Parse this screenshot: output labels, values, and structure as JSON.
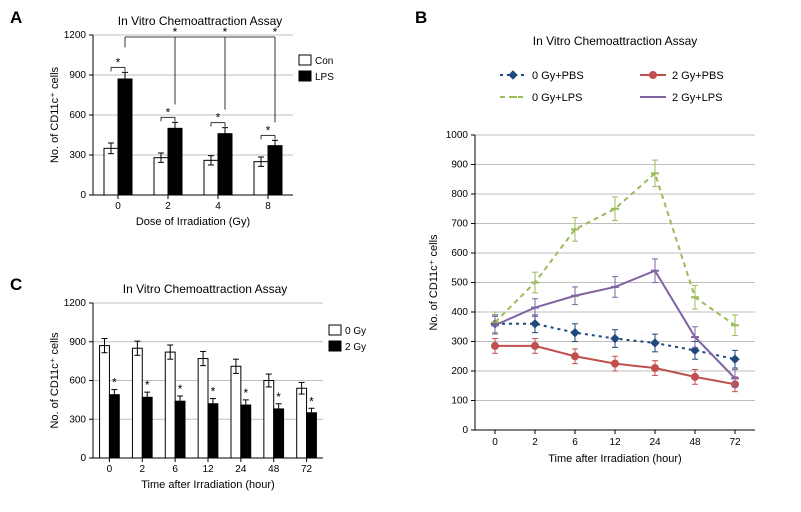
{
  "colors": {
    "background": "#ffffff",
    "axis": "#000000",
    "grid": "#bfbfbf",
    "bar_white": "#ffffff",
    "bar_black": "#000000",
    "bar_border": "#000000",
    "err": "#000000",
    "series_0gy_pbs": "#1f497d",
    "series_2gy_pbs": "#c0504d",
    "series_0gy_lps": "#9bbb59",
    "series_2gy_lps": "#8064a2"
  },
  "panelA": {
    "label": "A",
    "title": "In Vitro Chemoattraction Assay",
    "xlabel": "Dose of Irradiation (Gy)",
    "ylabel": "No. of CD11c⁺ cells",
    "categories": [
      "0",
      "2",
      "4",
      "8"
    ],
    "ylim": [
      0,
      1200
    ],
    "ytick_step": 300,
    "con": {
      "label": "Con",
      "values": [
        350,
        280,
        260,
        250
      ],
      "err": [
        40,
        35,
        35,
        35
      ]
    },
    "lps": {
      "label": "LPS",
      "values": [
        870,
        500,
        460,
        370
      ],
      "err": [
        50,
        45,
        45,
        40
      ]
    }
  },
  "panelB": {
    "label": "B",
    "title": "In Vitro Chemoattraction Assay",
    "xlabel": "Time after Irradiation (hour)",
    "ylabel": "No. of CD11c⁺ cells",
    "xcats": [
      "0",
      "2",
      "6",
      "12",
      "24",
      "48",
      "72"
    ],
    "ylim": [
      0,
      1000
    ],
    "ytick_step": 100,
    "series": [
      {
        "key": "s0p",
        "label": "0 Gy+PBS",
        "color_key": "series_0gy_pbs",
        "dash": "3,4",
        "marker": "diamond",
        "values": [
          360,
          360,
          330,
          310,
          295,
          270,
          240
        ],
        "err": [
          30,
          30,
          30,
          30,
          30,
          30,
          30
        ]
      },
      {
        "key": "s2p",
        "label": "2 Gy+PBS",
        "color_key": "series_2gy_pbs",
        "dash": "",
        "marker": "circle",
        "values": [
          285,
          285,
          250,
          225,
          210,
          180,
          155
        ],
        "err": [
          25,
          25,
          25,
          25,
          25,
          25,
          25
        ]
      },
      {
        "key": "s0l",
        "label": "0 Gy+LPS",
        "color_key": "series_0gy_lps",
        "dash": "5,4",
        "marker": "dash",
        "values": [
          365,
          500,
          680,
          750,
          870,
          450,
          355
        ],
        "err": [
          35,
          35,
          40,
          40,
          45,
          40,
          35
        ]
      },
      {
        "key": "s2l",
        "label": "2 Gy+LPS",
        "color_key": "series_2gy_lps",
        "dash": "",
        "marker": "dash",
        "values": [
          355,
          415,
          455,
          485,
          540,
          315,
          175
        ],
        "err": [
          30,
          30,
          30,
          35,
          40,
          35,
          30
        ]
      }
    ]
  },
  "panelC": {
    "label": "C",
    "title": "In Vitro Chemoattraction Assay",
    "xlabel": "Time after Irradiation (hour)",
    "ylabel": "No. of CD11c⁺ cells",
    "categories": [
      "0",
      "2",
      "6",
      "12",
      "24",
      "48",
      "72"
    ],
    "ylim": [
      0,
      1200
    ],
    "ytick_step": 300,
    "g0": {
      "label": "0 Gy",
      "values": [
        870,
        850,
        820,
        770,
        710,
        600,
        540
      ],
      "err": [
        55,
        55,
        55,
        55,
        55,
        50,
        45
      ]
    },
    "g2": {
      "label": "2 Gy",
      "values": [
        490,
        470,
        440,
        420,
        410,
        380,
        350
      ],
      "err": [
        40,
        40,
        40,
        40,
        40,
        40,
        35
      ]
    }
  },
  "sig_marker": "*"
}
